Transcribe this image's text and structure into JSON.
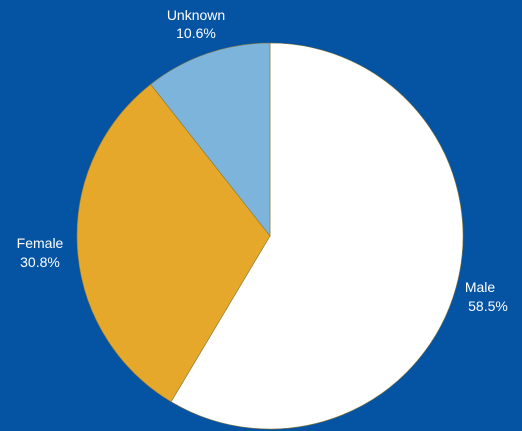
{
  "chart_data": {
    "type": "pie",
    "background_color": "#0553a3",
    "slices": [
      {
        "name": "Male",
        "value": 58.5,
        "label": "58.5%",
        "color": "#ffffff"
      },
      {
        "name": "Female",
        "value": 30.8,
        "label": "30.8%",
        "color": "#e6a82a"
      },
      {
        "name": "Unknown",
        "value": 10.6,
        "label": "10.6%",
        "color": "#7db4dc"
      }
    ],
    "start_angle": "12 o'clock",
    "direction": "clockwise"
  }
}
